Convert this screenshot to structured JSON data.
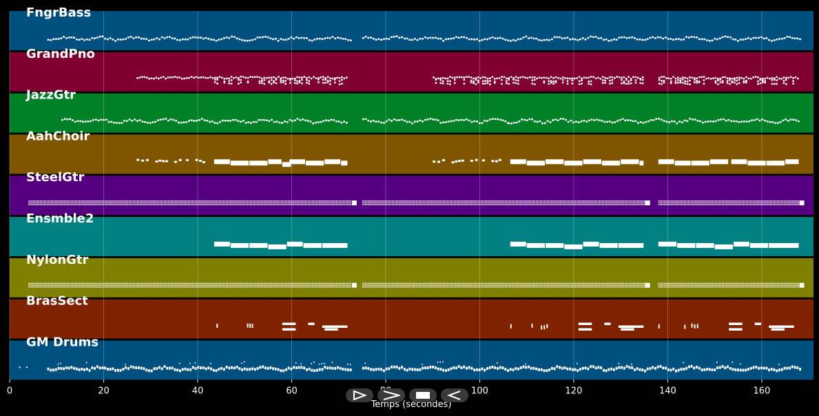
{
  "chart_data": {
    "type": "piano-roll",
    "xlabel": "Temps (secondes)",
    "xlim": [
      0,
      171
    ],
    "x_ticks": [
      0,
      20,
      40,
      60,
      80,
      100,
      120,
      140,
      160
    ],
    "grid": true,
    "tracks": [
      {
        "name": "FngrBass",
        "color": "#00507f",
        "style": "bass",
        "segments": [
          [
            8,
            72.5
          ],
          [
            75,
            168
          ]
        ]
      },
      {
        "name": "GrandPno",
        "color": "#7f0030",
        "style": "piano",
        "segments": [
          [
            27,
            72
          ],
          [
            90,
            106
          ],
          [
            106,
            135
          ],
          [
            138,
            168
          ]
        ]
      },
      {
        "name": "JazzGtr",
        "color": "#008027",
        "style": "guitar",
        "segments": [
          [
            11,
            72
          ],
          [
            75,
            106
          ],
          [
            106,
            168
          ]
        ]
      },
      {
        "name": "AahChoir",
        "color": "#7f5500",
        "style": "choir",
        "blocks": [
          [
            43.5,
            47,
            0
          ],
          [
            47,
            51,
            1
          ],
          [
            51,
            55,
            1
          ],
          [
            55,
            58,
            0
          ],
          [
            58,
            60,
            2
          ],
          [
            59.5,
            63,
            0
          ],
          [
            63,
            67,
            1
          ],
          [
            67,
            70.5,
            0
          ],
          [
            70.5,
            72,
            1
          ],
          [
            106.5,
            110,
            0
          ],
          [
            110,
            114,
            1
          ],
          [
            114,
            118,
            0
          ],
          [
            118,
            122,
            1
          ],
          [
            122,
            126,
            0
          ],
          [
            126,
            130,
            1
          ],
          [
            130,
            134,
            0
          ],
          [
            134,
            135,
            1
          ],
          [
            138,
            141.5,
            0
          ],
          [
            141.5,
            145,
            1
          ],
          [
            145,
            149,
            1
          ],
          [
            149,
            153,
            0
          ],
          [
            153.5,
            157,
            0
          ],
          [
            157,
            161,
            1
          ],
          [
            161,
            165,
            1
          ],
          [
            165,
            168,
            0
          ]
        ],
        "small": [
          27,
          28,
          29,
          31,
          31.7,
          32.4,
          33.1,
          35,
          36,
          37.5,
          39.5,
          40.3,
          41,
          90,
          91,
          92,
          94,
          94.7,
          95.4,
          96.1,
          98,
          99,
          100.5,
          102.5,
          103.3,
          104
        ]
      },
      {
        "name": "SteelGtr",
        "color": "#550080",
        "style": "dense",
        "segments": [
          [
            4,
            72.5
          ],
          [
            75,
            135
          ],
          [
            138,
            168
          ]
        ],
        "caps": [
          72.8,
          135.2,
          168
        ]
      },
      {
        "name": "Ensmble2",
        "color": "#008080",
        "style": "pad",
        "blocks": [
          [
            43.5,
            47,
            0
          ],
          [
            47,
            51,
            1
          ],
          [
            51,
            55,
            1
          ],
          [
            55,
            59,
            2
          ],
          [
            59,
            62.5,
            0
          ],
          [
            62.5,
            66.5,
            1
          ],
          [
            66.5,
            72,
            1
          ],
          [
            106.5,
            110,
            0
          ],
          [
            110,
            114,
            1
          ],
          [
            114,
            118,
            1
          ],
          [
            118,
            122,
            2
          ],
          [
            122,
            125.5,
            0
          ],
          [
            125.5,
            129.5,
            1
          ],
          [
            129.5,
            135,
            1
          ],
          [
            138,
            142,
            0
          ],
          [
            142,
            146,
            1
          ],
          [
            146,
            150,
            1
          ],
          [
            150,
            154,
            2
          ],
          [
            154,
            157.5,
            0
          ],
          [
            157.5,
            161.5,
            1
          ],
          [
            161.5,
            168,
            1
          ]
        ]
      },
      {
        "name": "NylonGtr",
        "color": "#808000",
        "style": "dense",
        "segments": [
          [
            4,
            72.5
          ],
          [
            75,
            135
          ],
          [
            138,
            168
          ]
        ],
        "caps": [
          72.8,
          135.2,
          168
        ]
      },
      {
        "name": "BrasSect",
        "color": "#7f2200",
        "style": "brass",
        "blocks": [
          [
            58,
            61,
            0
          ],
          [
            58,
            61,
            2
          ],
          [
            63.5,
            65,
            0
          ],
          [
            66.5,
            72,
            1
          ],
          [
            67,
            70,
            2
          ],
          [
            121,
            124,
            0
          ],
          [
            121,
            124,
            2
          ],
          [
            126.5,
            128,
            0
          ],
          [
            129.5,
            135,
            1
          ],
          [
            130,
            133,
            2
          ],
          [
            153,
            156,
            0
          ],
          [
            153,
            156,
            2
          ],
          [
            158.5,
            160,
            0
          ],
          [
            161.5,
            167,
            1
          ],
          [
            162,
            165,
            2
          ]
        ],
        "ticks": [
          44,
          50.5,
          51,
          51.5,
          106.5,
          111,
          113,
          113.6,
          114.2,
          138,
          143.5,
          145,
          145.6,
          146.2
        ]
      },
      {
        "name": "GM Drums",
        "color": "#00507f",
        "style": "drums",
        "segments": [
          [
            8,
            72.5
          ],
          [
            75,
            168
          ]
        ],
        "scatter": [
          2,
          3.5
        ]
      }
    ]
  }
}
